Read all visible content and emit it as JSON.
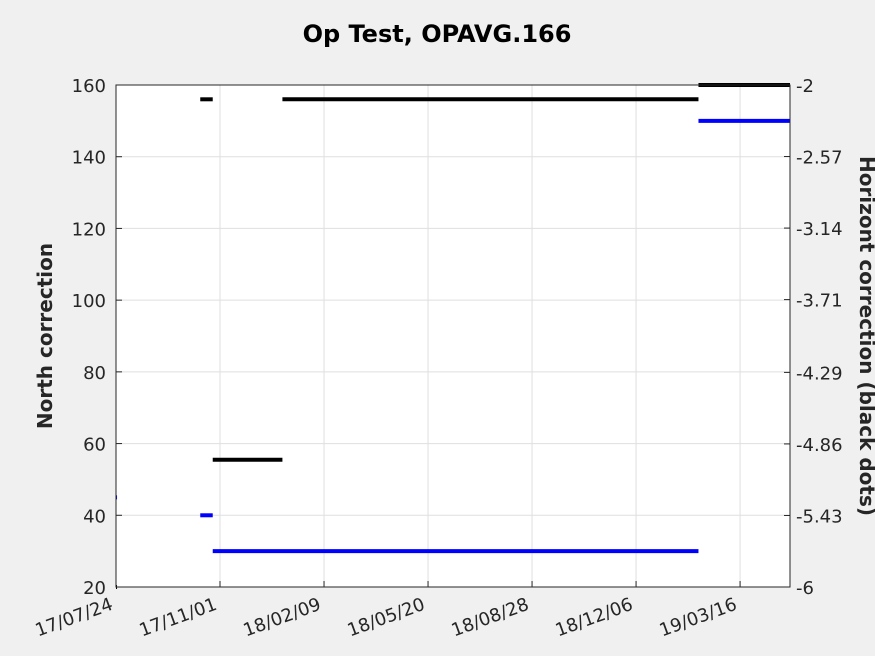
{
  "chart_data": {
    "type": "line",
    "title": "Op Test, OPAVG.166",
    "ylabel": "North correction",
    "y2label": "Horizont correction (black dots)",
    "xlim": [
      "17/07/24",
      "19/05/03"
    ],
    "ylim": [
      20,
      160
    ],
    "y2lim": [
      -6,
      -2
    ],
    "xticks": [
      "17/07/24",
      "17/11/01",
      "18/02/09",
      "18/05/20",
      "18/08/28",
      "18/12/06",
      "19/03/16"
    ],
    "yticks": [
      20,
      40,
      60,
      80,
      100,
      120,
      140,
      160
    ],
    "y2ticks": [
      "-6",
      "-5.43",
      "-4.86",
      "-4.29",
      "-3.71",
      "-3.14",
      "-2.57",
      "-2"
    ],
    "grid": true,
    "series": [
      {
        "axis": "left",
        "color": "#0000ff",
        "segments": [
          {
            "x": [
              "17/07/24",
              "17/07/25"
            ],
            "y": 45
          },
          {
            "x": [
              "17/10/13",
              "17/10/25"
            ],
            "y": 40
          },
          {
            "x": [
              "17/10/25",
              "19/02/04"
            ],
            "y": 30
          },
          {
            "x": [
              "19/02/04",
              "19/05/03"
            ],
            "y": 150
          }
        ]
      },
      {
        "axis": "right",
        "color": "#000000",
        "segments": [
          {
            "x": [
              "17/07/24",
              "17/07/25"
            ],
            "y": -6
          },
          {
            "x": [
              "17/10/13",
              "17/10/25"
            ],
            "y": -2.114
          },
          {
            "x": [
              "17/10/25",
              "17/12/31"
            ],
            "y": -4.986
          },
          {
            "x": [
              "17/12/31",
              "19/02/04"
            ],
            "y": -2.114
          },
          {
            "x": [
              "19/02/04",
              "19/05/03"
            ],
            "y": -2
          }
        ]
      }
    ]
  }
}
